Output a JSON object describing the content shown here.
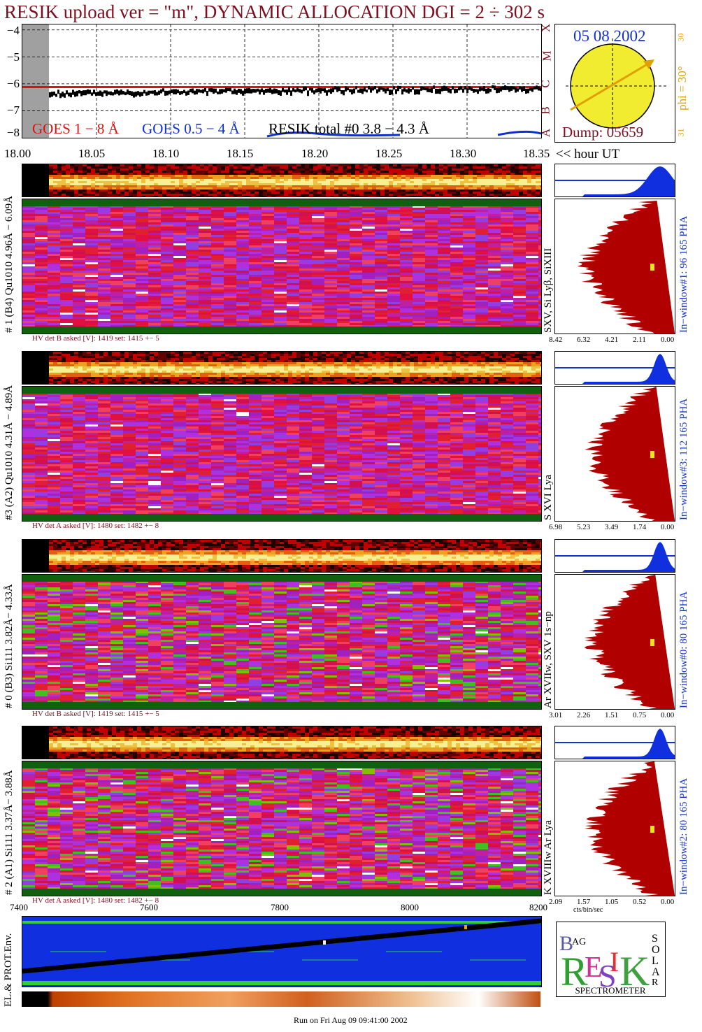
{
  "title": "RESIK upload ver = \"m\", DYNAMIC ALLOCATION  DGI =   2 ÷ 302 s",
  "colors": {
    "goes1": "#e01010",
    "goes2": "#1030d0",
    "resik": "#000000",
    "hist": "#b00000",
    "pha": "#1030e0",
    "title": "#7a1020"
  },
  "chart_data": [
    {
      "type": "line",
      "name": "goes-lightcurve",
      "ylim": [
        -8,
        -3.8
      ],
      "yticks": [
        "−4",
        "−5",
        "−6",
        "−7",
        "−8"
      ],
      "xlim": [
        18.0,
        18.35
      ],
      "xticks": [
        "18.00",
        "18.05",
        "18.10",
        "18.15",
        "18.20",
        "18.25",
        "18.30",
        "18.35"
      ],
      "xlabel": "<< hour UT",
      "class_letters": [
        "X",
        "M",
        "C",
        "B",
        "A"
      ],
      "legend": [
        "GOES 1 − 8 Å",
        "GOES 0.5 − 4 Å",
        "RESIK total #0  3.8 − 4.3 Å"
      ],
      "series": [
        {
          "name": "GOES 1 − 8 Å",
          "values": [
            -6.12,
            -6.12
          ]
        },
        {
          "name": "RESIK total #0  3.8 − 4.3 Å",
          "values": [
            -6.35,
            -6.3,
            -6.28,
            -6.25,
            -6.22,
            -6.2,
            -6.18,
            -6.15
          ]
        }
      ]
    },
    {
      "type": "heatmap",
      "name": "spectra-time-series",
      "panels": [
        {
          "label": "# 1 (B4) Qu1010 4.96Å − 6.09Å",
          "line": "SXV, Si Lyβ, SiXIII",
          "hv": "HV det B asked [V]:  1419 set:  1415 +−    5",
          "window": "In−window#1:   96 165 PHA",
          "xticks": [
            "8.42",
            "6.32",
            "4.21",
            "2.11",
            "0.00"
          ]
        },
        {
          "label": "#3 (A2) Qu1010  4.31Å − 4.89Å",
          "line": "S XVI Lya",
          "hv": "HV det A asked [V]:  1480 set:  1482 +−    8",
          "window": "In−window#3:  112 165 PHA",
          "xticks": [
            "6.98",
            "5.23",
            "3.49",
            "1.74",
            "0.00"
          ]
        },
        {
          "label": "# 0 (B3) Si111  3.82Å− 4.33Å",
          "line": "Ar XVIIw,  SXV 1s−np",
          "hv": "HV det B asked [V]:  1419 set:  1415 +−    5",
          "window": "In−window#0:   80 165 PHA",
          "xticks": [
            "3.01",
            "2.26",
            "1.51",
            "0.75",
            "0.00"
          ]
        },
        {
          "label": "# 2 (A1) Si111  3.37Å− 3.88Å",
          "line": "K XVIIIw  Ar Lya",
          "hv": "HV det A asked [V]:  1480 set:  1482 +−    8",
          "window": "In−window#2:   80 165 PHA",
          "xticks": [
            "2.09",
            "1.57",
            "1.05",
            "0.52",
            "0.00"
          ],
          "xlabel": "cts/bin/sec"
        }
      ]
    },
    {
      "type": "line",
      "name": "environment",
      "xlim": [
        7400,
        8200
      ],
      "xticks": [
        "7400",
        "7600",
        "7800",
        "8000",
        "8200"
      ],
      "ylabel": "EL.& PROT.Env."
    }
  ],
  "sun": {
    "date": "05 08 2002",
    "phi": "phi = 30°",
    "scale_top": "30",
    "scale_bottom": "31",
    "dump": "Dump: 05659"
  },
  "logo": {
    "spectrometer": "SPECTROMETER",
    "letters": [
      "B",
      "AG",
      "R",
      "E",
      "S",
      "I",
      "K",
      "S",
      "O",
      "L",
      "A",
      "R"
    ]
  },
  "footer": "Run on Fri Aug 09 09:41:00 2002"
}
